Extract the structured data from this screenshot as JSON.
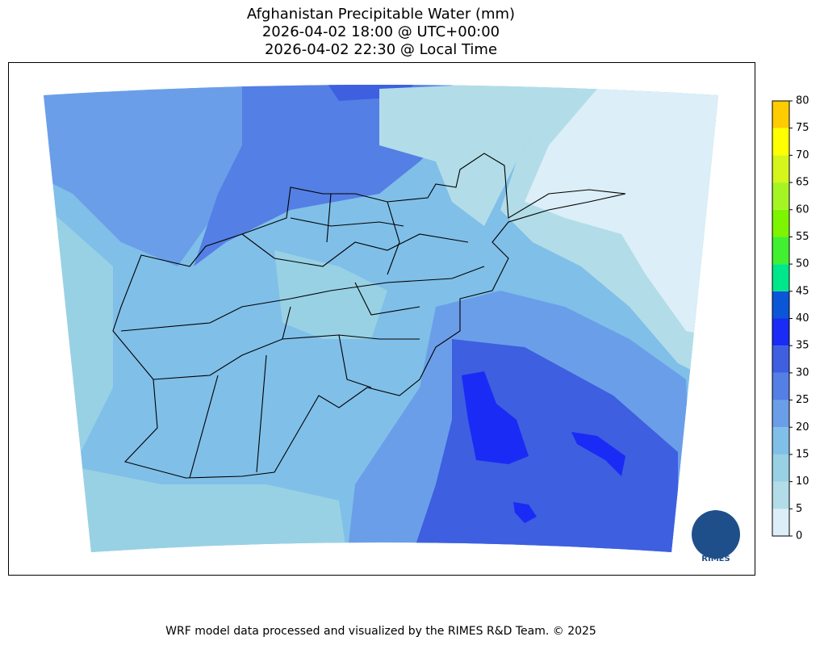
{
  "title": [
    "Afghanistan Precipitable Water (mm)",
    "2026-04-02 18:00 @ UTC+00:00",
    "2026-04-02 22:30 @ Local Time"
  ],
  "colorbar": {
    "ticks": [
      0,
      5,
      10,
      15,
      20,
      25,
      30,
      35,
      40,
      45,
      50,
      55,
      60,
      65,
      70,
      75,
      80
    ],
    "colors": [
      "#dceef7",
      "#b2dde8",
      "#98d1e4",
      "#80bfe8",
      "#6b9ee9",
      "#547fe4",
      "#3d5fe0",
      "#1a2bf5",
      "#0b56d6",
      "#00e68a",
      "#42f032",
      "#7df500",
      "#a5f524",
      "#d5f51b",
      "#ffff00",
      "#ffcc00"
    ]
  },
  "footer": "WRF model data processed and visualized by the RIMES R&D Team. © 2025",
  "logo": "RIMES"
}
